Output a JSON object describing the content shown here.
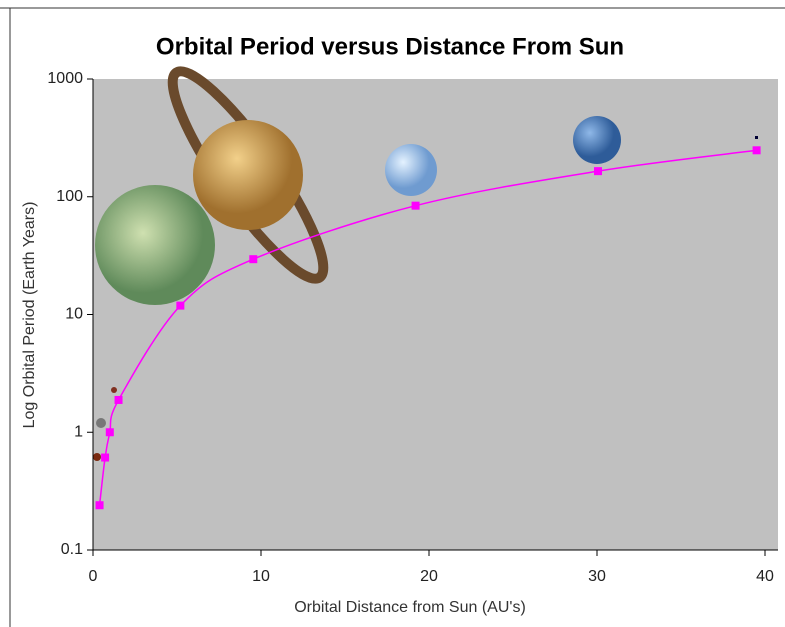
{
  "chart_data": {
    "type": "line",
    "title": "Orbital Period versus Distance From Sun",
    "x_label": "Orbital Distance from Sun (AU's)",
    "y_label": "Log Orbital Period (Earth Years)",
    "x": [
      0.39,
      0.72,
      1.0,
      1.52,
      5.2,
      9.54,
      19.2,
      30.06,
      39.5
    ],
    "series": [
      {
        "color": "#ff00ff",
        "values": [
          0.24,
          0.61,
          1.0,
          1.88,
          11.9,
          29.5,
          84,
          165,
          248
        ]
      }
    ],
    "xlim": [
      0,
      40
    ],
    "xticks": [
      0,
      10,
      20,
      30,
      40
    ],
    "ylim": [
      0.1,
      1000
    ],
    "yticks": [
      0.1,
      1,
      10,
      100,
      1000
    ],
    "log_y": true,
    "background": "#c0c0c0"
  }
}
